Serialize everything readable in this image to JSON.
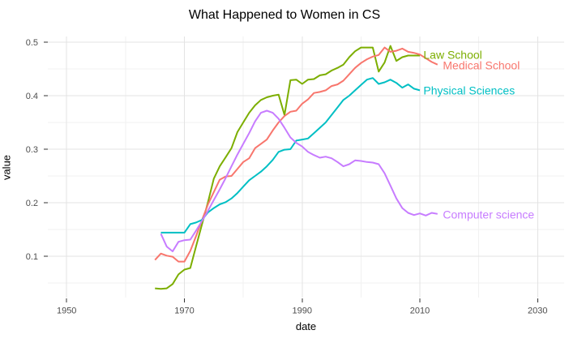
{
  "colors": {
    "background": "#FFFFFF",
    "grid_major": "#E3E3E3",
    "grid_minor": "#F1F1F1",
    "tick_mark": "#333333",
    "axis_text": "#4D4D4D",
    "title_text": "#000000"
  },
  "chart_data": {
    "type": "line",
    "title": "What Happened to Women in CS",
    "xlabel": "date",
    "ylabel": "value",
    "x_unit": "year",
    "grid": "major and minor, light gray on white",
    "legend": "direct labels at right end of each line",
    "x_ticks": [
      1950,
      1970,
      1990,
      2010,
      2030
    ],
    "x_minor_ticks": [
      1960,
      1980,
      2000,
      2020
    ],
    "y_ticks": [
      0.1,
      0.2,
      0.3,
      0.4,
      0.5
    ],
    "y_minor_ticks": [
      0.05,
      0.15,
      0.25,
      0.35,
      0.45
    ],
    "x_domain": [
      1946.8,
      2034.5
    ],
    "y_domain": [
      0.0227,
      0.5106
    ],
    "series": [
      {
        "name": "law_school",
        "label": "Law School",
        "color": "#7CAE00",
        "label_anchor": {
          "x": 2010.6,
          "y": 0.476
        },
        "points": [
          [
            1965,
            0.04
          ],
          [
            1966,
            0.039
          ],
          [
            1967,
            0.04
          ],
          [
            1968,
            0.048
          ],
          [
            1969,
            0.066
          ],
          [
            1970,
            0.075
          ],
          [
            1971,
            0.078
          ],
          [
            1972,
            0.119
          ],
          [
            1973,
            0.16
          ],
          [
            1974,
            0.201
          ],
          [
            1975,
            0.245
          ],
          [
            1976,
            0.268
          ],
          [
            1977,
            0.285
          ],
          [
            1978,
            0.302
          ],
          [
            1979,
            0.332
          ],
          [
            1980,
            0.35
          ],
          [
            1981,
            0.368
          ],
          [
            1982,
            0.382
          ],
          [
            1983,
            0.392
          ],
          [
            1984,
            0.397
          ],
          [
            1985,
            0.4
          ],
          [
            1986,
            0.402
          ],
          [
            1987,
            0.364
          ],
          [
            1988,
            0.429
          ],
          [
            1989,
            0.43
          ],
          [
            1990,
            0.422
          ],
          [
            1991,
            0.43
          ],
          [
            1992,
            0.431
          ],
          [
            1993,
            0.438
          ],
          [
            1994,
            0.44
          ],
          [
            1995,
            0.447
          ],
          [
            1996,
            0.452
          ],
          [
            1997,
            0.458
          ],
          [
            1998,
            0.472
          ],
          [
            1999,
            0.483
          ],
          [
            2000,
            0.49
          ],
          [
            2001,
            0.49
          ],
          [
            2002,
            0.49
          ],
          [
            2003,
            0.445
          ],
          [
            2004,
            0.462
          ],
          [
            2005,
            0.493
          ],
          [
            2006,
            0.465
          ],
          [
            2007,
            0.472
          ],
          [
            2008,
            0.475
          ],
          [
            2009,
            0.475
          ],
          [
            2010,
            0.475
          ]
        ]
      },
      {
        "name": "medical_school",
        "label": "Medical School",
        "color": "#F8766D",
        "label_anchor": {
          "x": 2013.9,
          "y": 0.456
        },
        "points": [
          [
            1965,
            0.093
          ],
          [
            1966,
            0.105
          ],
          [
            1967,
            0.101
          ],
          [
            1968,
            0.099
          ],
          [
            1969,
            0.09
          ],
          [
            1970,
            0.09
          ],
          [
            1971,
            0.11
          ],
          [
            1972,
            0.138
          ],
          [
            1973,
            0.168
          ],
          [
            1974,
            0.197
          ],
          [
            1975,
            0.22
          ],
          [
            1976,
            0.243
          ],
          [
            1977,
            0.249
          ],
          [
            1978,
            0.25
          ],
          [
            1979,
            0.263
          ],
          [
            1980,
            0.276
          ],
          [
            1981,
            0.283
          ],
          [
            1982,
            0.302
          ],
          [
            1983,
            0.31
          ],
          [
            1984,
            0.318
          ],
          [
            1985,
            0.335
          ],
          [
            1986,
            0.35
          ],
          [
            1987,
            0.362
          ],
          [
            1988,
            0.37
          ],
          [
            1989,
            0.372
          ],
          [
            1990,
            0.385
          ],
          [
            1991,
            0.393
          ],
          [
            1992,
            0.405
          ],
          [
            1993,
            0.407
          ],
          [
            1994,
            0.41
          ],
          [
            1995,
            0.418
          ],
          [
            1996,
            0.421
          ],
          [
            1997,
            0.428
          ],
          [
            1998,
            0.44
          ],
          [
            1999,
            0.452
          ],
          [
            2000,
            0.461
          ],
          [
            2001,
            0.468
          ],
          [
            2002,
            0.473
          ],
          [
            2003,
            0.476
          ],
          [
            2004,
            0.49
          ],
          [
            2005,
            0.482
          ],
          [
            2006,
            0.484
          ],
          [
            2007,
            0.488
          ],
          [
            2008,
            0.482
          ],
          [
            2009,
            0.48
          ],
          [
            2010,
            0.477
          ],
          [
            2011,
            0.47
          ],
          [
            2012,
            0.463
          ],
          [
            2013,
            0.458
          ]
        ]
      },
      {
        "name": "physical_sciences",
        "label": "Physical Sciences",
        "color": "#00BFC4",
        "label_anchor": {
          "x": 2010.6,
          "y": 0.409
        },
        "points": [
          [
            1966,
            0.144
          ],
          [
            1967,
            0.144
          ],
          [
            1968,
            0.144
          ],
          [
            1969,
            0.144
          ],
          [
            1970,
            0.144
          ],
          [
            1971,
            0.16
          ],
          [
            1972,
            0.163
          ],
          [
            1973,
            0.168
          ],
          [
            1974,
            0.182
          ],
          [
            1975,
            0.19
          ],
          [
            1976,
            0.197
          ],
          [
            1977,
            0.201
          ],
          [
            1978,
            0.208
          ],
          [
            1979,
            0.218
          ],
          [
            1980,
            0.23
          ],
          [
            1981,
            0.242
          ],
          [
            1982,
            0.25
          ],
          [
            1983,
            0.258
          ],
          [
            1984,
            0.268
          ],
          [
            1985,
            0.28
          ],
          [
            1986,
            0.295
          ],
          [
            1987,
            0.299
          ],
          [
            1988,
            0.3
          ],
          [
            1989,
            0.316
          ],
          [
            1990,
            0.318
          ],
          [
            1991,
            0.32
          ],
          [
            1992,
            0.33
          ],
          [
            1993,
            0.34
          ],
          [
            1994,
            0.35
          ],
          [
            1995,
            0.364
          ],
          [
            1996,
            0.378
          ],
          [
            1997,
            0.392
          ],
          [
            1998,
            0.4
          ],
          [
            1999,
            0.41
          ],
          [
            2000,
            0.42
          ],
          [
            2001,
            0.43
          ],
          [
            2002,
            0.433
          ],
          [
            2003,
            0.422
          ],
          [
            2004,
            0.425
          ],
          [
            2005,
            0.43
          ],
          [
            2006,
            0.424
          ],
          [
            2007,
            0.415
          ],
          [
            2008,
            0.421
          ],
          [
            2009,
            0.413
          ],
          [
            2010,
            0.41
          ]
        ]
      },
      {
        "name": "computer_science",
        "label": "Computer science",
        "color": "#C77CFF",
        "label_anchor": {
          "x": 2013.9,
          "y": 0.178
        },
        "points": [
          [
            1966,
            0.142
          ],
          [
            1967,
            0.118
          ],
          [
            1968,
            0.109
          ],
          [
            1969,
            0.127
          ],
          [
            1970,
            0.13
          ],
          [
            1971,
            0.131
          ],
          [
            1972,
            0.148
          ],
          [
            1973,
            0.166
          ],
          [
            1974,
            0.185
          ],
          [
            1975,
            0.205
          ],
          [
            1976,
            0.225
          ],
          [
            1977,
            0.246
          ],
          [
            1978,
            0.268
          ],
          [
            1979,
            0.29
          ],
          [
            1980,
            0.31
          ],
          [
            1981,
            0.33
          ],
          [
            1982,
            0.352
          ],
          [
            1983,
            0.368
          ],
          [
            1984,
            0.372
          ],
          [
            1985,
            0.368
          ],
          [
            1986,
            0.357
          ],
          [
            1987,
            0.34
          ],
          [
            1988,
            0.322
          ],
          [
            1989,
            0.312
          ],
          [
            1990,
            0.305
          ],
          [
            1991,
            0.295
          ],
          [
            1992,
            0.289
          ],
          [
            1993,
            0.284
          ],
          [
            1994,
            0.286
          ],
          [
            1995,
            0.283
          ],
          [
            1996,
            0.276
          ],
          [
            1997,
            0.268
          ],
          [
            1998,
            0.272
          ],
          [
            1999,
            0.279
          ],
          [
            2000,
            0.278
          ],
          [
            2001,
            0.276
          ],
          [
            2002,
            0.275
          ],
          [
            2003,
            0.272
          ],
          [
            2004,
            0.255
          ],
          [
            2005,
            0.232
          ],
          [
            2006,
            0.208
          ],
          [
            2007,
            0.19
          ],
          [
            2008,
            0.181
          ],
          [
            2009,
            0.177
          ],
          [
            2010,
            0.18
          ],
          [
            2011,
            0.176
          ],
          [
            2012,
            0.181
          ],
          [
            2013,
            0.179
          ]
        ]
      }
    ]
  }
}
